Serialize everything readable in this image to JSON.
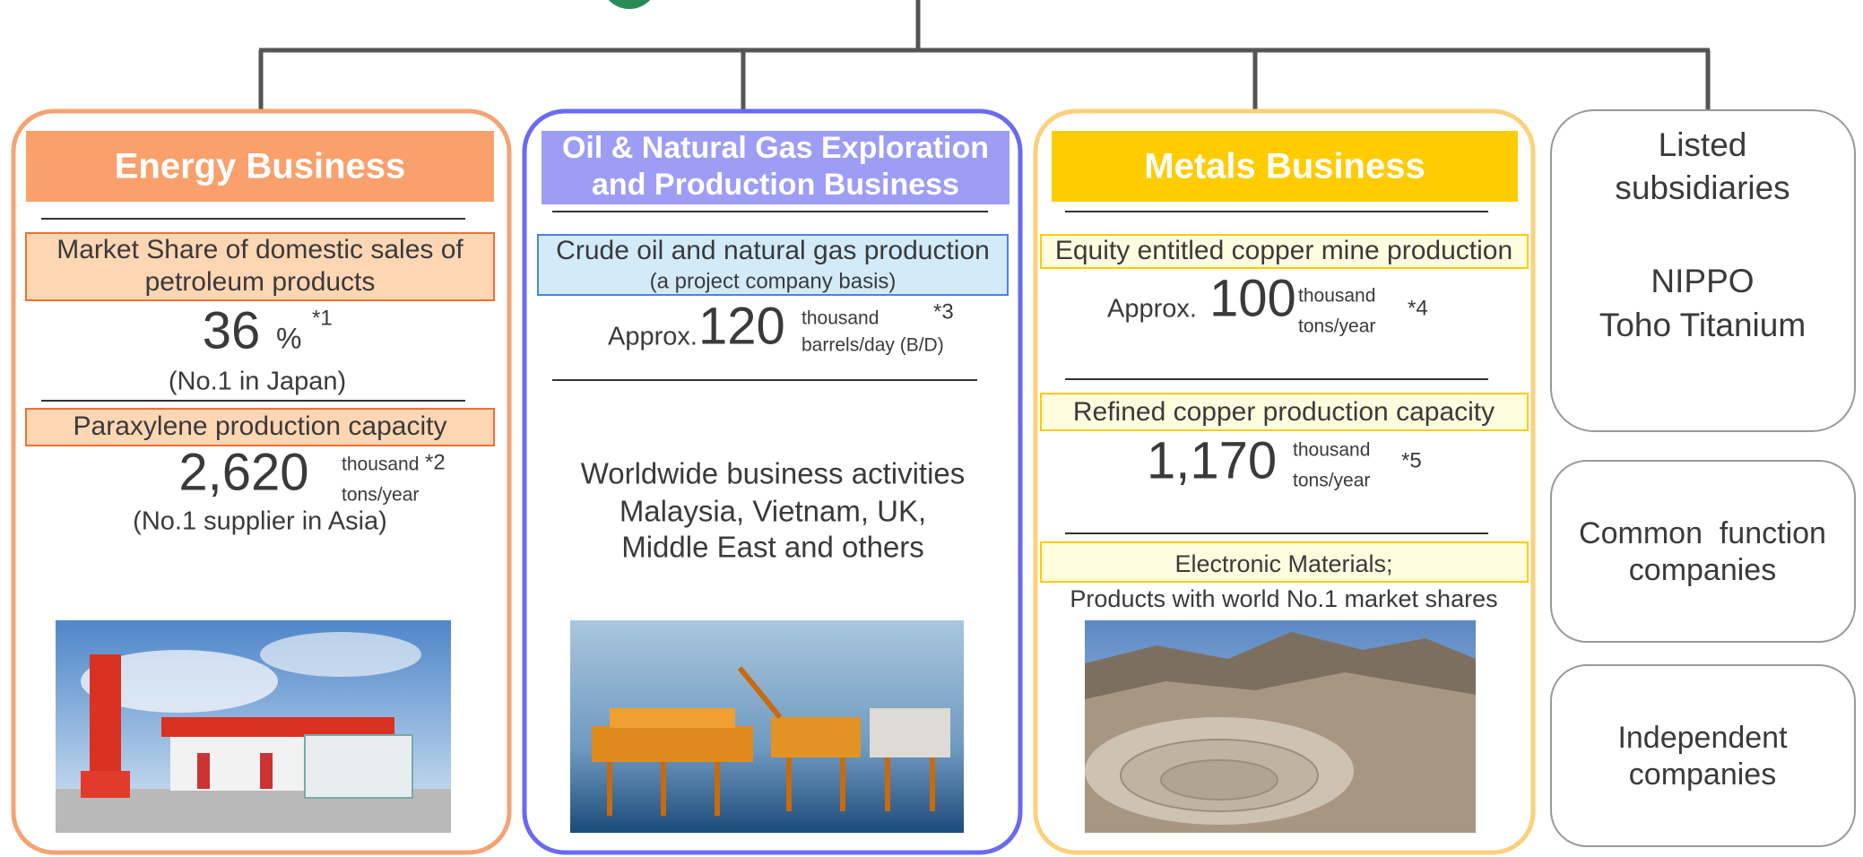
{
  "energy": {
    "title": "Energy Business",
    "share_label": [
      "Market Share of domestic sales of",
      "petroleum products"
    ],
    "share_value": "36",
    "share_unit": "%",
    "share_note": "*1",
    "share_rank": "(No.1 in Japan)",
    "px_label": "Paraxylene production capacity",
    "px_value": "2,620",
    "px_unit_top": "thousand",
    "px_note": "*2",
    "px_unit_bottom": "tons/year",
    "px_rank": "(No.1 supplier in Asia)"
  },
  "oil": {
    "title": [
      "Oil & Natural Gas Exploration",
      "and Production Business"
    ],
    "prod_label": "Crude oil and natural gas production",
    "prod_sub": "(a project company basis)",
    "prod_prefix": "Approx.",
    "prod_value": "120",
    "prod_unit_top": "thousand",
    "prod_note": "*3",
    "prod_unit_bottom": "barrels/day (B/D)",
    "activities": [
      "Worldwide business activities",
      "Malaysia, Vietnam, UK,",
      "Middle East and others"
    ]
  },
  "metals": {
    "title": "Metals Business",
    "mine_label": "Equity entitled copper mine production",
    "mine_prefix": "Approx.",
    "mine_value": "100",
    "mine_unit_top": "thousand",
    "mine_unit_bottom": "tons/year",
    "mine_note": "*4",
    "refined_label": "Refined copper production capacity",
    "refined_value": "1,170",
    "refined_unit_top": "thousand",
    "refined_unit_bottom": "tons/year",
    "refined_note": "*5",
    "electronic_label": "Electronic Materials;",
    "electronic_sub": "Products with world No.1 market shares"
  },
  "others": {
    "listed_title": [
      "Listed",
      "subsidiaries"
    ],
    "listed_names": [
      "NIPPO",
      "Toho Titanium"
    ],
    "common": [
      "Common  function",
      "companies"
    ],
    "independent": [
      "Independent",
      "companies"
    ]
  }
}
